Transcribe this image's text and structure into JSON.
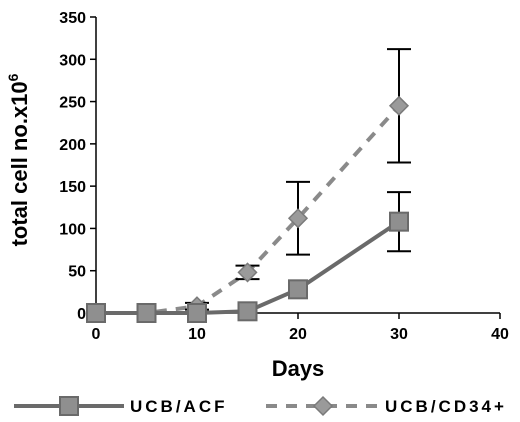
{
  "chart_data": {
    "type": "line",
    "title": "",
    "xlabel": "Days",
    "ylabel_main": "total cell no.x10",
    "ylabel_sup": "6",
    "xlim": [
      0,
      40
    ],
    "ylim": [
      0,
      350
    ],
    "xticks": [
      "0",
      "10",
      "20",
      "30",
      "40"
    ],
    "yticks": [
      "0",
      "50",
      "100",
      "150",
      "200",
      "250",
      "300",
      "350"
    ],
    "grid": false,
    "legend_position": "bottom",
    "series": [
      {
        "name": "UCB/ACF",
        "color": "#6a6a6a",
        "line_style": "solid",
        "marker": "square",
        "x": [
          0,
          5,
          10,
          15,
          20,
          30
        ],
        "y": [
          0,
          0,
          0,
          2,
          28,
          108
        ],
        "err": [
          0,
          0,
          0,
          0,
          0,
          35
        ]
      },
      {
        "name": "UCB/CD34+",
        "color": "#8a8a8a",
        "line_style": "dashed",
        "marker": "diamond",
        "x": [
          0,
          5,
          10,
          15,
          20,
          30
        ],
        "y": [
          0,
          0,
          8,
          48,
          112,
          245
        ],
        "err": [
          0,
          0,
          4,
          8,
          43,
          67
        ]
      }
    ]
  }
}
